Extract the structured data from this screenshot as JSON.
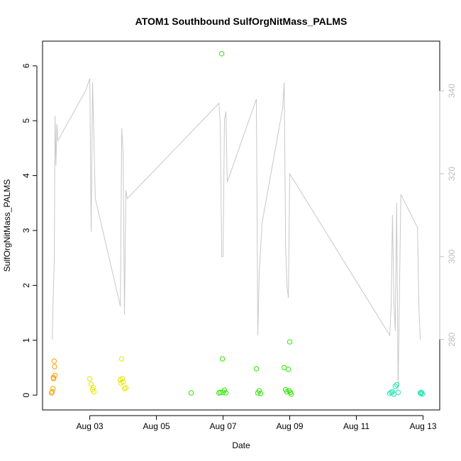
{
  "chart_data": {
    "type": "scatter",
    "title": "ATOM1 Southbound SulfOrgNitMass_PALMS",
    "xlabel": "Date",
    "ylabel": "SulfOrgNitMass_PALMS",
    "x_is_date": true,
    "xlim": [
      "2016-08-01T14:00",
      "2016-08-13T12:00"
    ],
    "ylim": [
      -0.27,
      6.45
    ],
    "x_ticks": [
      {
        "label": "Aug 03",
        "value": "2016-08-03T00:00"
      },
      {
        "label": "Aug 05",
        "value": "2016-08-05T00:00"
      },
      {
        "label": "Aug 07",
        "value": "2016-08-07T00:00"
      },
      {
        "label": "Aug 09",
        "value": "2016-08-09T00:00"
      },
      {
        "label": "Aug 11",
        "value": "2016-08-11T00:00"
      },
      {
        "label": "Aug 13",
        "value": "2016-08-13T00:00"
      }
    ],
    "y_ticks": [
      0,
      1,
      2,
      3,
      4,
      5,
      6
    ],
    "right_axis": {
      "ticks": [
        280,
        300,
        320,
        340
      ],
      "ylim": [
        263,
        352
      ],
      "color": "#bdbdbd",
      "series_line": {
        "color": "#c8c8c8",
        "points": [
          [
            "2016-08-01T21:00",
            280
          ],
          [
            "2016-08-01T21:40",
            290
          ],
          [
            "2016-08-01T22:30",
            300
          ],
          [
            "2016-08-01T23:00",
            334
          ],
          [
            "2016-08-01T23:40",
            322
          ],
          [
            "2016-08-02T00:20",
            332
          ],
          [
            "2016-08-02T01:00",
            328
          ],
          [
            "2016-08-02T21:00",
            340
          ],
          [
            "2016-08-03T00:00",
            343
          ],
          [
            "2016-08-03T01:00",
            306
          ],
          [
            "2016-08-03T02:00",
            342
          ],
          [
            "2016-08-03T04:00",
            314
          ],
          [
            "2016-08-03T22:00",
            288
          ],
          [
            "2016-08-03T23:00",
            331
          ],
          [
            "2016-08-04T00:00",
            325
          ],
          [
            "2016-08-04T01:00",
            286
          ],
          [
            "2016-08-04T02:00",
            316
          ],
          [
            "2016-08-04T03:00",
            314
          ],
          [
            "2016-08-06T01:00",
            330
          ],
          [
            "2016-08-06T21:00",
            337
          ],
          [
            "2016-08-06T22:00",
            332
          ],
          [
            "2016-08-06T23:00",
            300
          ],
          [
            "2016-08-07T00:00",
            300
          ],
          [
            "2016-08-07T01:00",
            333
          ],
          [
            "2016-08-07T02:00",
            335
          ],
          [
            "2016-08-07T03:00",
            318
          ],
          [
            "2016-08-08T00:00",
            338
          ],
          [
            "2016-08-08T01:00",
            281
          ],
          [
            "2016-08-08T02:00",
            296
          ],
          [
            "2016-08-08T04:00",
            308
          ],
          [
            "2016-08-08T19:00",
            336
          ],
          [
            "2016-08-08T20:00",
            342
          ],
          [
            "2016-08-08T21:00",
            303
          ],
          [
            "2016-08-08T22:00",
            293
          ],
          [
            "2016-08-08T23:00",
            290
          ],
          [
            "2016-08-09T00:00",
            320
          ],
          [
            "2016-08-12T00:00",
            281
          ],
          [
            "2016-08-12T01:00",
            288
          ],
          [
            "2016-08-12T02:00",
            310
          ],
          [
            "2016-08-12T03:00",
            289
          ],
          [
            "2016-08-12T04:00",
            282
          ],
          [
            "2016-08-12T05:00",
            313
          ],
          [
            "2016-08-12T06:00",
            268
          ],
          [
            "2016-08-12T08:00",
            315
          ],
          [
            "2016-08-12T20:00",
            307
          ],
          [
            "2016-08-12T21:00",
            288
          ],
          [
            "2016-08-12T22:00",
            280
          ]
        ]
      }
    },
    "series": [
      {
        "color": "#f59f00",
        "points": [
          [
            "2016-08-01T21:00",
            0.06
          ],
          [
            "2016-08-01T21:30",
            0.12
          ],
          [
            "2016-08-01T21:45",
            0.32
          ],
          [
            "2016-08-01T22:00",
            0.3
          ],
          [
            "2016-08-01T22:20",
            0.62
          ],
          [
            "2016-08-01T22:40",
            0.52
          ],
          [
            "2016-08-01T23:00",
            0.36
          ],
          [
            "2016-08-01T20:30",
            0.04
          ]
        ]
      },
      {
        "color": "#e6e600",
        "points": [
          [
            "2016-08-03T00:00",
            0.3
          ],
          [
            "2016-08-03T01:00",
            0.2
          ],
          [
            "2016-08-03T02:00",
            0.1
          ],
          [
            "2016-08-03T03:00",
            0.06
          ],
          [
            "2016-08-03T02:30",
            0.14
          ],
          [
            "2016-08-03T22:00",
            0.28
          ],
          [
            "2016-08-03T22:30",
            0.22
          ],
          [
            "2016-08-03T23:00",
            0.66
          ],
          [
            "2016-08-03T23:30",
            0.3
          ],
          [
            "2016-08-04T00:00",
            0.24
          ],
          [
            "2016-08-04T01:00",
            0.12
          ],
          [
            "2016-08-04T02:00",
            0.13
          ]
        ]
      },
      {
        "color": "#2ee600",
        "points": [
          [
            "2016-08-06T01:00",
            0.04
          ],
          [
            "2016-08-06T21:00",
            0.04
          ],
          [
            "2016-08-06T22:00",
            0.05
          ],
          [
            "2016-08-06T23:00",
            6.22
          ],
          [
            "2016-08-06T23:30",
            0.66
          ],
          [
            "2016-08-07T00:00",
            0.05
          ],
          [
            "2016-08-07T01:00",
            0.09
          ],
          [
            "2016-08-07T02:00",
            0.04
          ],
          [
            "2016-08-08T00:00",
            0.48
          ],
          [
            "2016-08-08T01:00",
            0.04
          ],
          [
            "2016-08-08T02:00",
            0.08
          ],
          [
            "2016-08-08T03:00",
            0.03
          ],
          [
            "2016-08-08T20:00",
            0.5
          ],
          [
            "2016-08-08T21:00",
            0.1
          ],
          [
            "2016-08-08T22:00",
            0.06
          ],
          [
            "2016-08-08T23:00",
            0.47
          ],
          [
            "2016-08-09T00:00",
            0.97
          ],
          [
            "2016-08-09T00:30",
            0.05
          ],
          [
            "2016-08-09T01:00",
            0.02
          ],
          [
            "2016-08-08T23:30",
            0.08
          ]
        ]
      },
      {
        "color": "#1de6b0",
        "points": [
          [
            "2016-08-12T00:00",
            0.03
          ],
          [
            "2016-08-12T01:00",
            0.05
          ],
          [
            "2016-08-12T02:00",
            0.06
          ],
          [
            "2016-08-12T03:00",
            0.02
          ],
          [
            "2016-08-12T04:00",
            0.16
          ],
          [
            "2016-08-12T05:00",
            0.19
          ],
          [
            "2016-08-12T06:00",
            0.05
          ],
          [
            "2016-08-12T22:00",
            0.04
          ],
          [
            "2016-08-12T22:30",
            0.03
          ],
          [
            "2016-08-12T23:00",
            0.05
          ],
          [
            "2016-08-12T23:30",
            0.02
          ]
        ]
      }
    ]
  }
}
